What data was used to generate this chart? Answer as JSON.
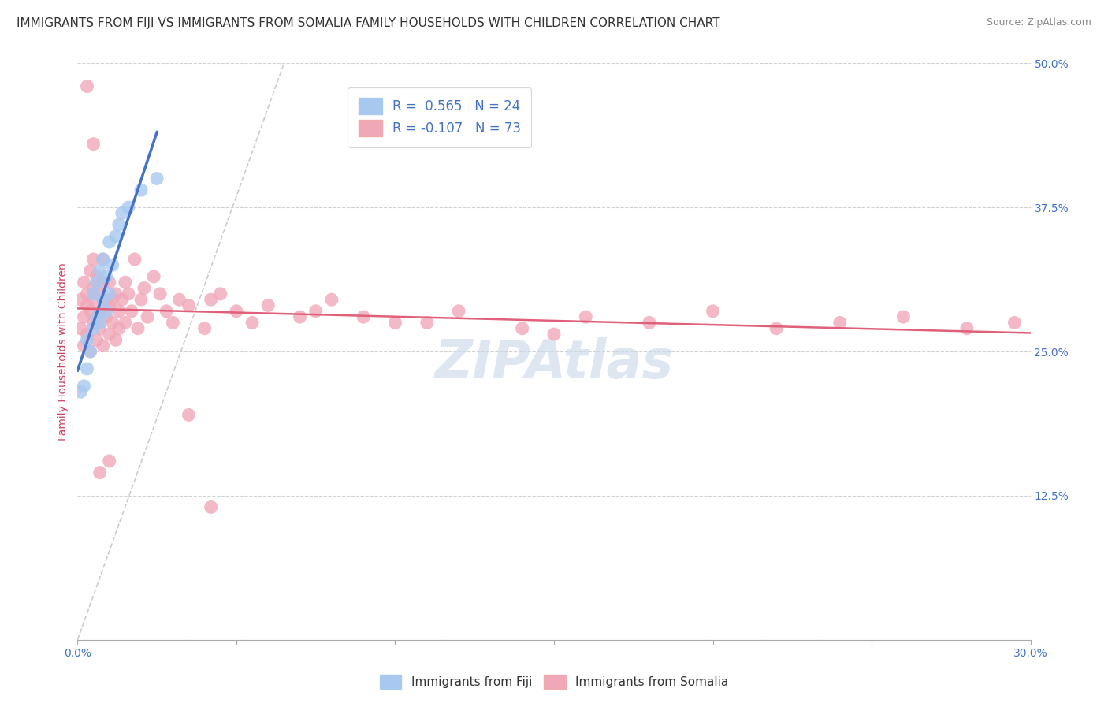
{
  "title": "IMMIGRANTS FROM FIJI VS IMMIGRANTS FROM SOMALIA FAMILY HOUSEHOLDS WITH CHILDREN CORRELATION CHART",
  "source": "Source: ZipAtlas.com",
  "ylabel": "Family Households with Children",
  "x_min": 0.0,
  "x_max": 0.3,
  "y_min": 0.0,
  "y_max": 0.5,
  "x_ticks": [
    0.0,
    0.05,
    0.1,
    0.15,
    0.2,
    0.25,
    0.3
  ],
  "x_tick_labels": [
    "0.0%",
    "",
    "",
    "",
    "",
    "",
    "30.0%"
  ],
  "y_ticks": [
    0.0,
    0.125,
    0.25,
    0.375,
    0.5
  ],
  "y_tick_labels_right": [
    "",
    "12.5%",
    "25.0%",
    "37.5%",
    "50.0%"
  ],
  "fiji_color": "#a8c8f0",
  "somalia_color": "#f0a8b8",
  "fiji_line_color": "#4472c4",
  "somalia_line_color": "#e0607a",
  "fiji_R": 0.565,
  "fiji_N": 24,
  "somalia_R": -0.107,
  "somalia_N": 73,
  "legend_label_fiji": "Immigrants from Fiji",
  "legend_label_somalia": "Immigrants from Somalia",
  "fiji_x": [
    0.001,
    0.002,
    0.003,
    0.003,
    0.004,
    0.005,
    0.005,
    0.006,
    0.006,
    0.007,
    0.007,
    0.008,
    0.008,
    0.009,
    0.009,
    0.01,
    0.01,
    0.011,
    0.012,
    0.013,
    0.014,
    0.016,
    0.02,
    0.025
  ],
  "fiji_y": [
    0.215,
    0.22,
    0.235,
    0.26,
    0.25,
    0.27,
    0.3,
    0.28,
    0.31,
    0.275,
    0.32,
    0.295,
    0.33,
    0.285,
    0.315,
    0.3,
    0.345,
    0.325,
    0.35,
    0.36,
    0.37,
    0.375,
    0.39,
    0.4
  ],
  "somalia_x": [
    0.001,
    0.001,
    0.002,
    0.002,
    0.002,
    0.003,
    0.003,
    0.003,
    0.004,
    0.004,
    0.004,
    0.005,
    0.005,
    0.005,
    0.005,
    0.006,
    0.006,
    0.007,
    0.007,
    0.007,
    0.008,
    0.008,
    0.008,
    0.009,
    0.009,
    0.01,
    0.01,
    0.01,
    0.011,
    0.011,
    0.012,
    0.012,
    0.013,
    0.013,
    0.014,
    0.015,
    0.015,
    0.016,
    0.017,
    0.018,
    0.019,
    0.02,
    0.021,
    0.022,
    0.024,
    0.026,
    0.028,
    0.03,
    0.032,
    0.035,
    0.04,
    0.042,
    0.045,
    0.05,
    0.055,
    0.06,
    0.07,
    0.08,
    0.1,
    0.12,
    0.14,
    0.16,
    0.18,
    0.2,
    0.22,
    0.24,
    0.26,
    0.28,
    0.295,
    0.15,
    0.11,
    0.09,
    0.075
  ],
  "somalia_y": [
    0.27,
    0.295,
    0.31,
    0.28,
    0.255,
    0.3,
    0.265,
    0.29,
    0.32,
    0.285,
    0.25,
    0.305,
    0.275,
    0.295,
    0.33,
    0.26,
    0.315,
    0.285,
    0.27,
    0.3,
    0.255,
    0.31,
    0.33,
    0.28,
    0.295,
    0.265,
    0.29,
    0.31,
    0.275,
    0.295,
    0.26,
    0.3,
    0.285,
    0.27,
    0.295,
    0.31,
    0.275,
    0.3,
    0.285,
    0.33,
    0.27,
    0.295,
    0.305,
    0.28,
    0.315,
    0.3,
    0.285,
    0.275,
    0.295,
    0.29,
    0.27,
    0.295,
    0.3,
    0.285,
    0.275,
    0.29,
    0.28,
    0.295,
    0.275,
    0.285,
    0.27,
    0.28,
    0.275,
    0.285,
    0.27,
    0.275,
    0.28,
    0.27,
    0.275,
    0.265,
    0.275,
    0.28,
    0.285
  ],
  "somalia_outlier_x": [
    0.003,
    0.005,
    0.007,
    0.01,
    0.035,
    0.042
  ],
  "somalia_outlier_y": [
    0.48,
    0.43,
    0.145,
    0.155,
    0.195,
    0.115
  ],
  "background_color": "#ffffff",
  "plot_bg_color": "#ffffff",
  "title_fontsize": 11,
  "axis_label_fontsize": 10,
  "tick_fontsize": 10,
  "legend_fontsize": 11,
  "watermark_text": "ZIPAtlas",
  "watermark_color": "#c8d8e8",
  "watermark_fontsize": 48,
  "diag_line_x": [
    0.0,
    0.065
  ],
  "diag_line_y": [
    0.0,
    0.5
  ]
}
